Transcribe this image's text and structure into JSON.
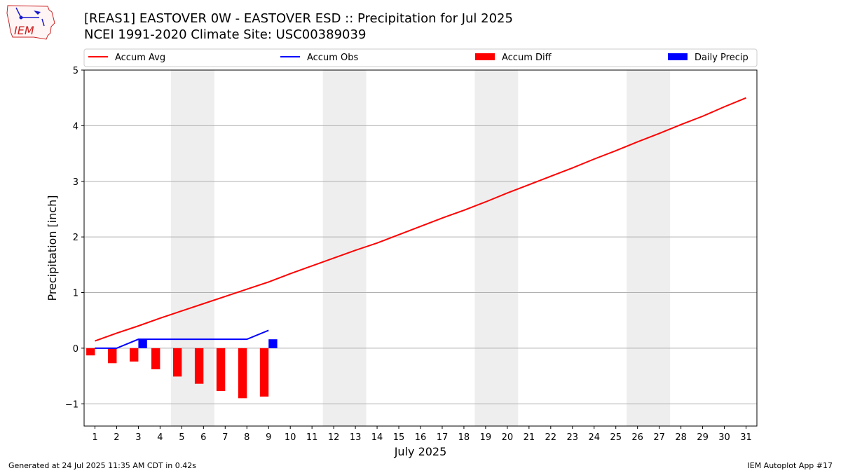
{
  "header": {
    "title_line1": "[REAS1] EASTOVER 0W - EASTOVER ESD :: Precipitation for Jul 2025",
    "title_line2": "NCEI 1991-2020 Climate Site: USC00389039",
    "logo_text": "IEM"
  },
  "footer": {
    "left": "Generated at 24 Jul 2025 11:35 AM CDT in 0.42s",
    "right": "IEM Autoplot App #17"
  },
  "colors": {
    "accum_avg": "#ff0000",
    "accum_obs": "#0000ff",
    "accum_diff": "#ff0000",
    "daily_precip": "#0000ff",
    "weekend_shade": "#eeeeee",
    "grid": "#b0b0b0"
  },
  "chart_data": {
    "type": "line",
    "title": "[REAS1] EASTOVER 0W - EASTOVER ESD :: Precipitation for Jul 2025",
    "subtitle": "NCEI 1991-2020 Climate Site: USC00389039",
    "xlabel": "July 2025",
    "ylabel": "Precipitation [inch]",
    "xlim": [
      0.5,
      31.5
    ],
    "ylim": [
      -1.4,
      5
    ],
    "yticks": [
      -1,
      0,
      1,
      2,
      3,
      4,
      5
    ],
    "ytick_labels": [
      "−1",
      "0",
      "1",
      "2",
      "3",
      "4",
      "5"
    ],
    "x": [
      1,
      2,
      3,
      4,
      5,
      6,
      7,
      8,
      9,
      10,
      11,
      12,
      13,
      14,
      15,
      16,
      17,
      18,
      19,
      20,
      21,
      22,
      23,
      24,
      25,
      26,
      27,
      28,
      29,
      30,
      31
    ],
    "grid": "horizontal",
    "legend_position": "top",
    "weekend_days": [
      5,
      6,
      12,
      13,
      19,
      20,
      26,
      27
    ],
    "series": [
      {
        "name": "Accum Avg",
        "kind": "line",
        "x": [
          1,
          2,
          3,
          4,
          5,
          6,
          7,
          8,
          9,
          10,
          11,
          12,
          13,
          14,
          15,
          16,
          17,
          18,
          19,
          20,
          21,
          22,
          23,
          24,
          25,
          26,
          27,
          28,
          29,
          30,
          31
        ],
        "values": [
          0.13,
          0.27,
          0.4,
          0.54,
          0.67,
          0.8,
          0.93,
          1.06,
          1.19,
          1.34,
          1.48,
          1.62,
          1.76,
          1.89,
          2.04,
          2.19,
          2.34,
          2.48,
          2.63,
          2.79,
          2.94,
          3.09,
          3.24,
          3.4,
          3.55,
          3.71,
          3.86,
          4.02,
          4.17,
          4.34,
          4.5
        ]
      },
      {
        "name": "Accum Obs",
        "kind": "line",
        "x": [
          1,
          2,
          3,
          4,
          5,
          6,
          7,
          8,
          9
        ],
        "values": [
          0.0,
          0.0,
          0.16,
          0.16,
          0.16,
          0.16,
          0.16,
          0.16,
          0.32
        ]
      },
      {
        "name": "Accum Diff",
        "kind": "bar",
        "x": [
          1,
          2,
          3,
          4,
          5,
          6,
          7,
          8,
          9
        ],
        "values": [
          -0.13,
          -0.27,
          -0.24,
          -0.38,
          -0.51,
          -0.64,
          -0.77,
          -0.9,
          -0.87
        ]
      },
      {
        "name": "Daily Precip",
        "kind": "bar",
        "x": [
          3,
          9
        ],
        "values": [
          0.16,
          0.16
        ]
      }
    ]
  }
}
